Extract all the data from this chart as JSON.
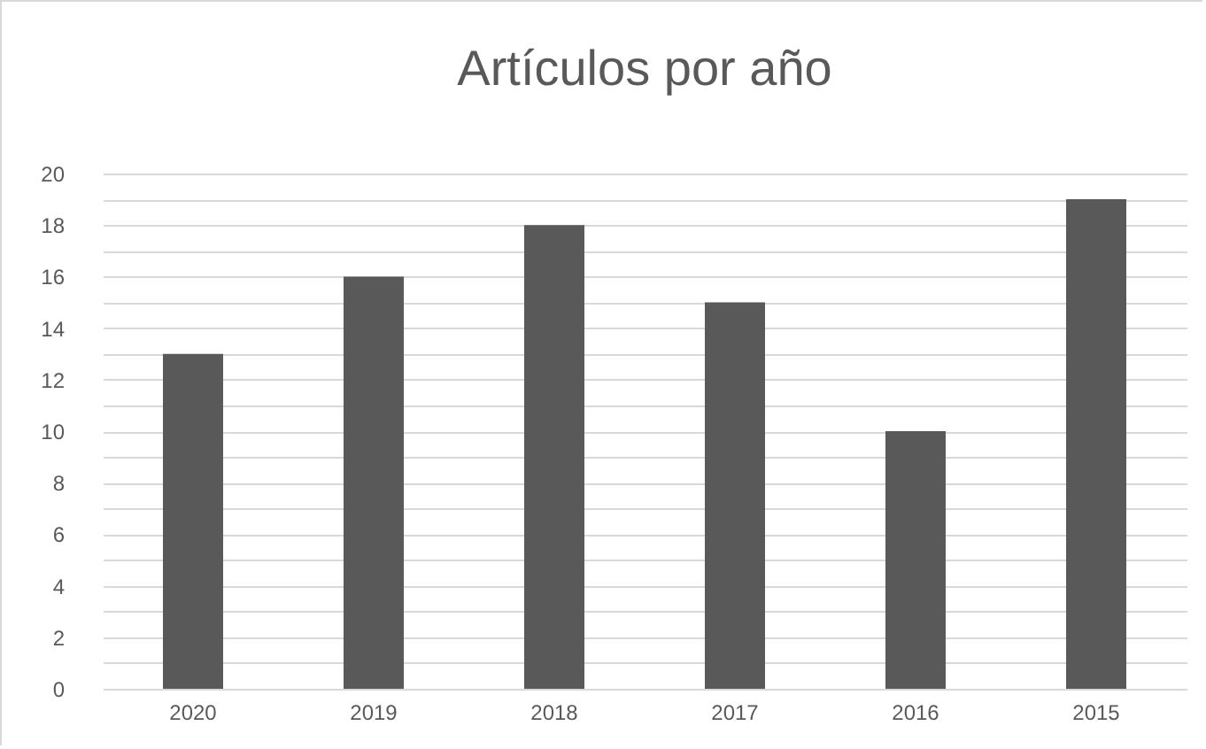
{
  "chart_data": {
    "type": "bar",
    "title": "Artículos por año",
    "categories": [
      "2020",
      "2019",
      "2018",
      "2017",
      "2016",
      "2015"
    ],
    "values": [
      13,
      16,
      18,
      15,
      10,
      19
    ],
    "color": "#595959",
    "ylim": [
      0,
      20
    ],
    "yticks": [
      0,
      {
        "value": 1,
        "label": null
      },
      2,
      {
        "value": 3,
        "label": null
      },
      4,
      {
        "value": 5,
        "label": null
      },
      6,
      {
        "value": 7,
        "label": null
      },
      8,
      {
        "value": 9,
        "label": null
      },
      10,
      {
        "value": 11,
        "label": null
      },
      12,
      {
        "value": 13,
        "label": null
      },
      14,
      {
        "value": 15,
        "label": null
      },
      16,
      {
        "value": 17,
        "label": null
      },
      18,
      {
        "value": 19,
        "label": null
      },
      20
    ],
    "grid": true
  }
}
